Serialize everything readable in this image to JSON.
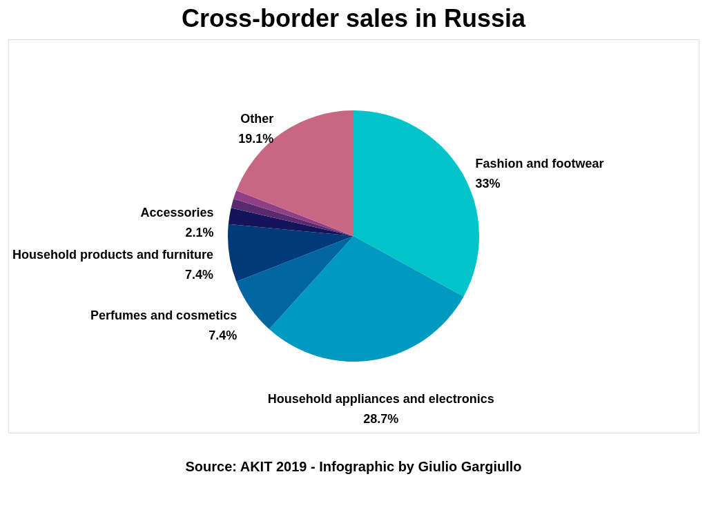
{
  "chart_data": {
    "type": "pie",
    "title": "Cross-border sales in Russia",
    "categories": [
      "Fashion and footwear",
      "Household appliances and electronics",
      "Perfumes and cosmetics",
      "Household products and furniture",
      "Accessories",
      null,
      null,
      "Other"
    ],
    "values": [
      33,
      28.7,
      7.4,
      7.4,
      2.1,
      1.2,
      1.1,
      19.1
    ],
    "value_labels": [
      "33%",
      "28.7%",
      "7.4%",
      "7.4%",
      "2.1%",
      null,
      null,
      "19.1%"
    ],
    "colors": [
      "#00c4c9",
      "#0099bf",
      "#0066a0",
      "#003a78",
      "#14145a",
      "#5a2a6e",
      "#8f3f85",
      "#c86784"
    ],
    "legend": false,
    "annotations": [
      "Source: AKIT 2019 - Infographic by Giulio Gargiullo"
    ]
  }
}
